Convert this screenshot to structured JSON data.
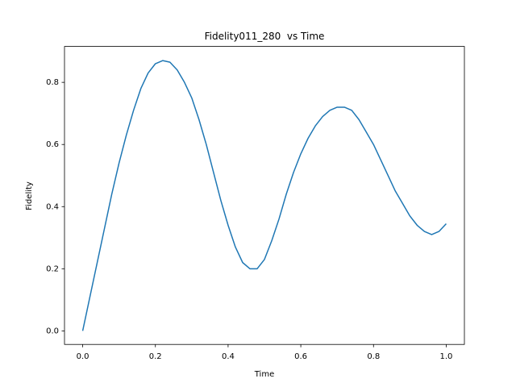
{
  "chart_data": {
    "type": "line",
    "title": "Fidelity011_280  vs Time",
    "xlabel": "Time",
    "ylabel": "Fidelity",
    "x": [
      0.0,
      0.02,
      0.04,
      0.06,
      0.08,
      0.1,
      0.12,
      0.14,
      0.16,
      0.18,
      0.2,
      0.22,
      0.24,
      0.26,
      0.28,
      0.3,
      0.32,
      0.34,
      0.36,
      0.38,
      0.4,
      0.42,
      0.44,
      0.46,
      0.48,
      0.5,
      0.52,
      0.54,
      0.56,
      0.58,
      0.6,
      0.62,
      0.64,
      0.66,
      0.68,
      0.7,
      0.72,
      0.74,
      0.76,
      0.78,
      0.8,
      0.82,
      0.84,
      0.86,
      0.88,
      0.9,
      0.92,
      0.94,
      0.96,
      0.98,
      1.0
    ],
    "series": [
      {
        "name": "Fidelity",
        "color": "#1f77b4",
        "values": [
          0.0,
          0.11,
          0.22,
          0.33,
          0.44,
          0.54,
          0.63,
          0.71,
          0.78,
          0.83,
          0.86,
          0.87,
          0.865,
          0.84,
          0.8,
          0.75,
          0.68,
          0.6,
          0.51,
          0.42,
          0.34,
          0.27,
          0.22,
          0.2,
          0.2,
          0.23,
          0.29,
          0.36,
          0.44,
          0.51,
          0.57,
          0.62,
          0.66,
          0.69,
          0.71,
          0.72,
          0.72,
          0.71,
          0.68,
          0.64,
          0.6,
          0.55,
          0.5,
          0.45,
          0.41,
          0.37,
          0.34,
          0.32,
          0.31,
          0.32,
          0.345
        ]
      }
    ],
    "xlim": [
      -0.05,
      1.05
    ],
    "ylim": [
      -0.0436,
      0.9156
    ],
    "xticks": [
      {
        "value": 0,
        "label": "0.0"
      },
      0.2,
      0.4,
      0.6,
      0.8,
      {
        "value": 1,
        "label": "1.0"
      }
    ],
    "yticks": [
      {
        "value": 0,
        "label": "0.0"
      },
      0.2,
      0.4,
      0.6,
      0.8
    ]
  }
}
